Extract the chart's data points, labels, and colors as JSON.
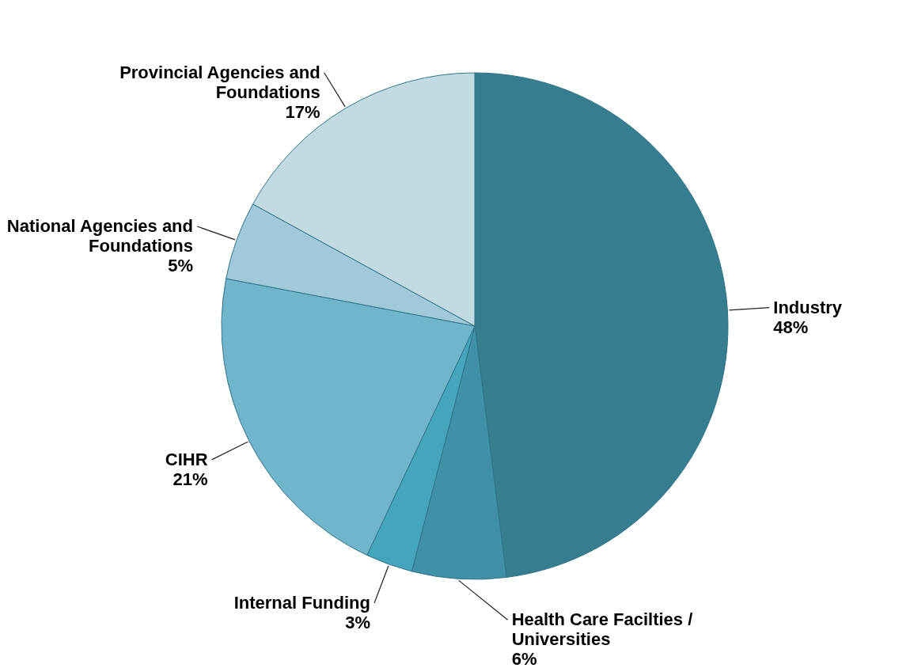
{
  "chart_data": {
    "type": "pie",
    "categories": [
      "Industry",
      "Health Care Facilties / Universities",
      "Internal Funding",
      "CIHR",
      "National Agencies and Foundations",
      "Provincial Agencies and Foundations"
    ],
    "values": [
      48,
      6,
      3,
      21,
      5,
      17
    ],
    "value_labels": [
      "48%",
      "6%",
      "3%",
      "21%",
      "5%",
      "17%"
    ],
    "colors": [
      "#357d8f",
      "#4090a8",
      "#45a5bd",
      "#70b5cc",
      "#a0c9d9",
      "#c2dbe3"
    ]
  }
}
